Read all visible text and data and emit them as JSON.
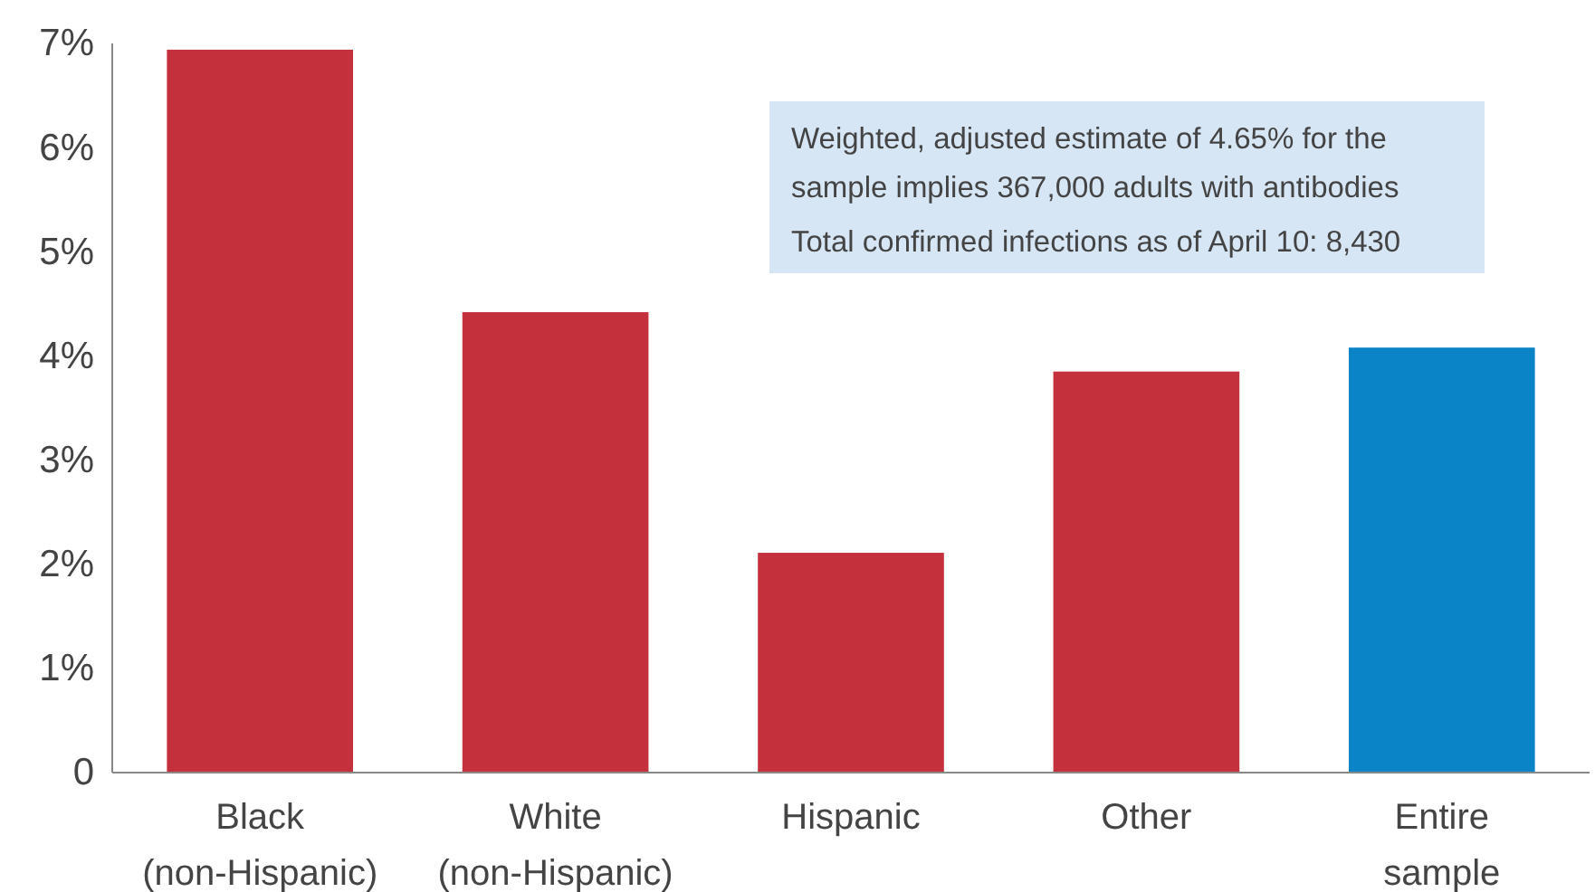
{
  "chart_data": {
    "type": "bar",
    "categories": [
      "Black\n(non-Hispanic)",
      "White\n(non-Hispanic)",
      "Hispanic",
      "Other",
      "Entire\nsample"
    ],
    "values": [
      6.94,
      4.42,
      2.11,
      3.85,
      4.08
    ],
    "colors": [
      "#c4303b",
      "#c4303b",
      "#c4303b",
      "#c4303b",
      "#0a84c6"
    ],
    "ylim": [
      0,
      7
    ],
    "yticks": [
      {
        "value": 0,
        "label": "0"
      },
      {
        "value": 1,
        "label": "1%"
      },
      {
        "value": 2,
        "label": "2%"
      },
      {
        "value": 3,
        "label": "3%"
      },
      {
        "value": 4,
        "label": "4%"
      },
      {
        "value": 5,
        "label": "5%"
      },
      {
        "value": 6,
        "label": "6%"
      },
      {
        "value": 7,
        "label": "7%"
      }
    ],
    "grid": false,
    "annotations": [
      "Weighted, adjusted estimate of 4.65% for the\nsample implies 367,000 adults with antibodies",
      "Total confirmed infections as of April 10: 8,430"
    ]
  }
}
